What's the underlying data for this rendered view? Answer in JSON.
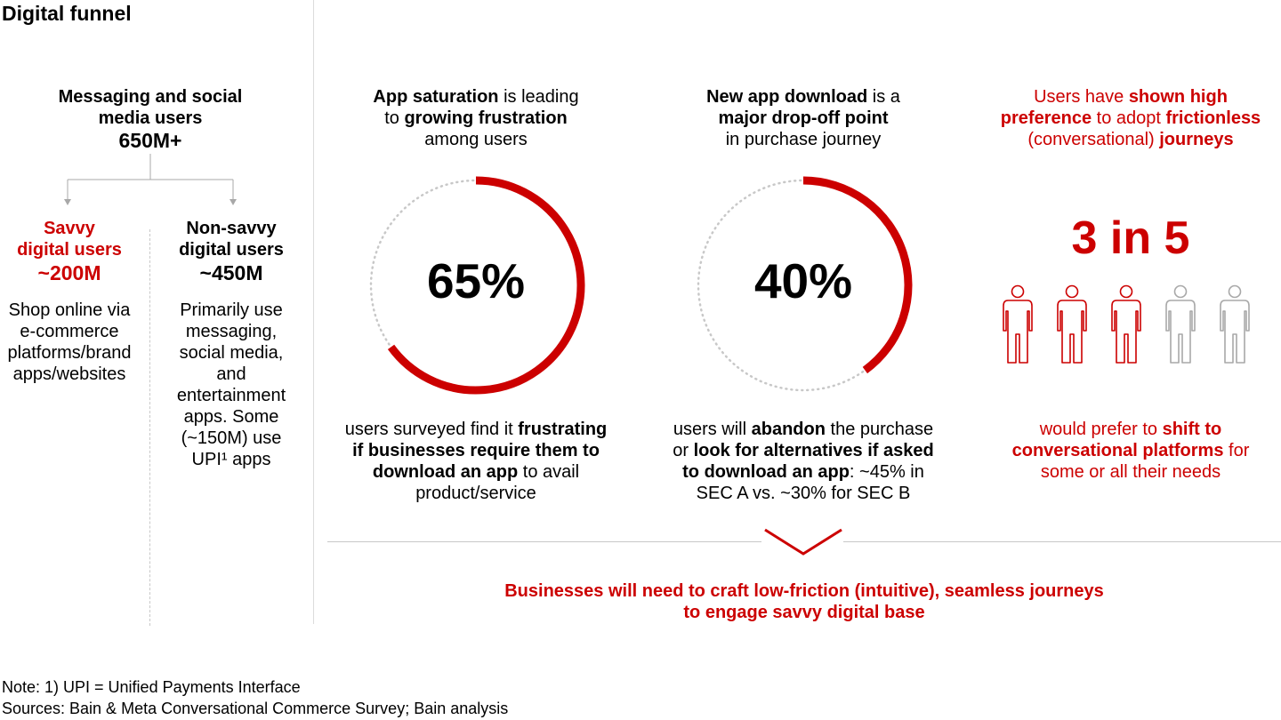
{
  "title": "Digital funnel",
  "funnel": {
    "top_line1": "Messaging and social",
    "top_line2": "media users",
    "top_value": "650M+",
    "savvy": {
      "line1": "Savvy",
      "line2": "digital users",
      "value": "~200M",
      "desc": [
        "Shop online via",
        "e-commerce",
        "platforms/brand",
        "apps/websites"
      ]
    },
    "nonsavvy": {
      "line1": "Non-savvy",
      "line2": "digital users",
      "value": "~450M",
      "desc": [
        "Primarily use",
        "messaging,",
        "social media,",
        "and",
        "entertainment",
        "apps. Some",
        "(~150M) use",
        "UPI¹ apps"
      ]
    }
  },
  "col1": {
    "head": {
      "a_bold": "App saturation",
      "a_rest": " is leading",
      "b_pre": "to ",
      "b_bold": "growing frustration",
      "c": "among users"
    },
    "percent_label": "65%",
    "percent": 65,
    "desc": {
      "l1_pre": "users surveyed find it ",
      "l1_bold": "frustrating",
      "l2_bold": "if businesses require them to",
      "l3_bold": "download an app",
      "l3_rest": " to avail",
      "l4": "product/service"
    }
  },
  "col2": {
    "head": {
      "a_bold": "New app download",
      "a_rest": " is a",
      "b_bold": "major drop-off point",
      "c": "in purchase journey"
    },
    "percent_label": "40%",
    "percent": 40,
    "desc": {
      "l1_pre": "users will ",
      "l1_bold": "abandon",
      "l1_rest": " the purchase",
      "l2_pre": "or ",
      "l2_bold": "look for alternatives if asked",
      "l3_bold": "to download an app",
      "l3_rest": ": ~45% in",
      "l4": "SEC A vs. ~30% for SEC B"
    }
  },
  "col3": {
    "head": {
      "a_pre": "Users have ",
      "a_bold": "shown high",
      "b_bold": "preference",
      "b_mid": " to adopt ",
      "b_bold2": "frictionless",
      "c_pre": "(conversational) ",
      "c_bold": "journeys"
    },
    "ratio": "3 in 5",
    "people_total": 5,
    "people_highlight": 3,
    "desc": {
      "l1_pre": "would prefer to ",
      "l1_bold": "shift to",
      "l2_bold": "conversational platforms",
      "l2_rest": " for",
      "l3": "some or all their needs"
    }
  },
  "conclusion": {
    "line1": "Businesses will need to craft low-friction (intuitive), seamless journeys",
    "line2": "to engage savvy digital base"
  },
  "notes": {
    "note": "Note: 1) UPI = Unified Payments Interface",
    "sources": "Sources: Bain & Meta Conversational Commerce Survey; Bain analysis"
  },
  "colors": {
    "accent": "#cc0000",
    "track": "#c8c8c8",
    "person_gray": "#a8a8a8",
    "rule": "#c8c8c8"
  },
  "icons": {
    "person": "person-icon",
    "chevron": "chevron-down-icon"
  }
}
